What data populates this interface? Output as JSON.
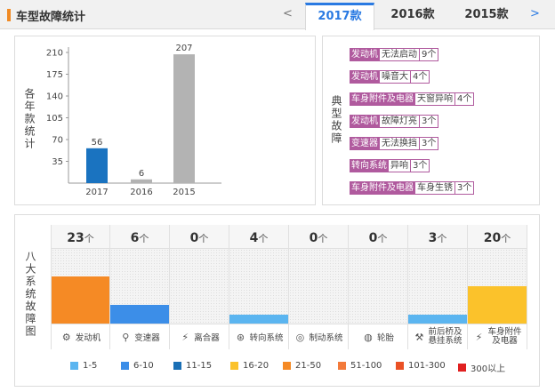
{
  "header": {
    "title": "车型故障统计",
    "prev": "<",
    "next": ">",
    "tabs": [
      {
        "label": "2017款",
        "active": true
      },
      {
        "label": "2016款",
        "active": false
      },
      {
        "label": "2015款",
        "active": false
      }
    ]
  },
  "chart_data": {
    "type": "bar",
    "ylabel": "各年款统计",
    "categories": [
      "2017",
      "2016",
      "2015"
    ],
    "values": [
      56,
      6,
      207
    ],
    "value_labels": [
      "56",
      "6",
      "207"
    ],
    "colors": [
      "#1a73c0",
      "#b3b3b3",
      "#b3b3b3"
    ],
    "yticks": [
      "35",
      "70",
      "105",
      "140",
      "175",
      "210"
    ],
    "ytick_values": [
      35,
      70,
      105,
      140,
      175,
      210
    ],
    "ylim": [
      0,
      210
    ]
  },
  "faults": {
    "label": "典型故障",
    "items": [
      {
        "category": "发动机",
        "issue": "无法启动",
        "count": "9个"
      },
      {
        "category": "发动机",
        "issue": "噪音大",
        "count": "4个"
      },
      {
        "category": "车身附件及电器",
        "issue": "天窗异响",
        "count": "4个"
      },
      {
        "category": "发动机",
        "issue": "故障灯亮",
        "count": "3个"
      },
      {
        "category": "变速器",
        "issue": "无法换挡",
        "count": "3个"
      },
      {
        "category": "转向系统",
        "issue": "异响",
        "count": "3个"
      },
      {
        "category": "车身附件及电器",
        "issue": "车身生锈",
        "count": "3个"
      }
    ]
  },
  "systems": {
    "label": "八大系统故障图",
    "unit": "个",
    "items": [
      {
        "name": "发动机",
        "count": "23",
        "icon": "engine-icon",
        "glyph": "⚙",
        "fill_level": 0.63,
        "color": "#f58a25"
      },
      {
        "name": "变速器",
        "count": "6",
        "icon": "gearshift-icon",
        "glyph": "⚲",
        "fill_level": 0.25,
        "color": "#3c8ee8"
      },
      {
        "name": "离合器",
        "count": "0",
        "icon": "clutch-pedal-icon",
        "glyph": "⚡",
        "fill_level": 0,
        "color": "#3c8ee8"
      },
      {
        "name": "转向系统",
        "count": "4",
        "icon": "steering-wheel-icon",
        "glyph": "⊛",
        "fill_level": 0.12,
        "color": "#5bb5f0"
      },
      {
        "name": "制动系统",
        "count": "0",
        "icon": "brake-disc-icon",
        "glyph": "◎",
        "fill_level": 0,
        "color": "#3c8ee8"
      },
      {
        "name": "轮胎",
        "count": "0",
        "icon": "tire-icon",
        "glyph": "◍",
        "fill_level": 0,
        "color": "#3c8ee8"
      },
      {
        "name": "前后桥及悬挂系统",
        "name_line1": "前后桥及",
        "name_line2": "悬挂系统",
        "count": "3",
        "icon": "axle-suspension-icon",
        "glyph": "⚒",
        "fill_level": 0.12,
        "color": "#5bb5f0"
      },
      {
        "name": "车身附件及电器",
        "name_line1": "车身附件",
        "name_line2": "及电器",
        "count": "20",
        "icon": "electrical-icon",
        "glyph": "⚡",
        "fill_level": 0.5,
        "color": "#fbc22b"
      }
    ]
  },
  "legend": [
    {
      "label": "1-5",
      "color": "#5bb5f0"
    },
    {
      "label": "6-10",
      "color": "#3c8ee8"
    },
    {
      "label": "11-15",
      "color": "#1a6fb5"
    },
    {
      "label": "16-20",
      "color": "#fbc22b"
    },
    {
      "label": "21-50",
      "color": "#f58a25"
    },
    {
      "label": "51-100",
      "color": "#f37a3a"
    },
    {
      "label": "101-300",
      "color": "#ea5125"
    },
    {
      "label": "300以上",
      "color": "#e02020"
    }
  ]
}
